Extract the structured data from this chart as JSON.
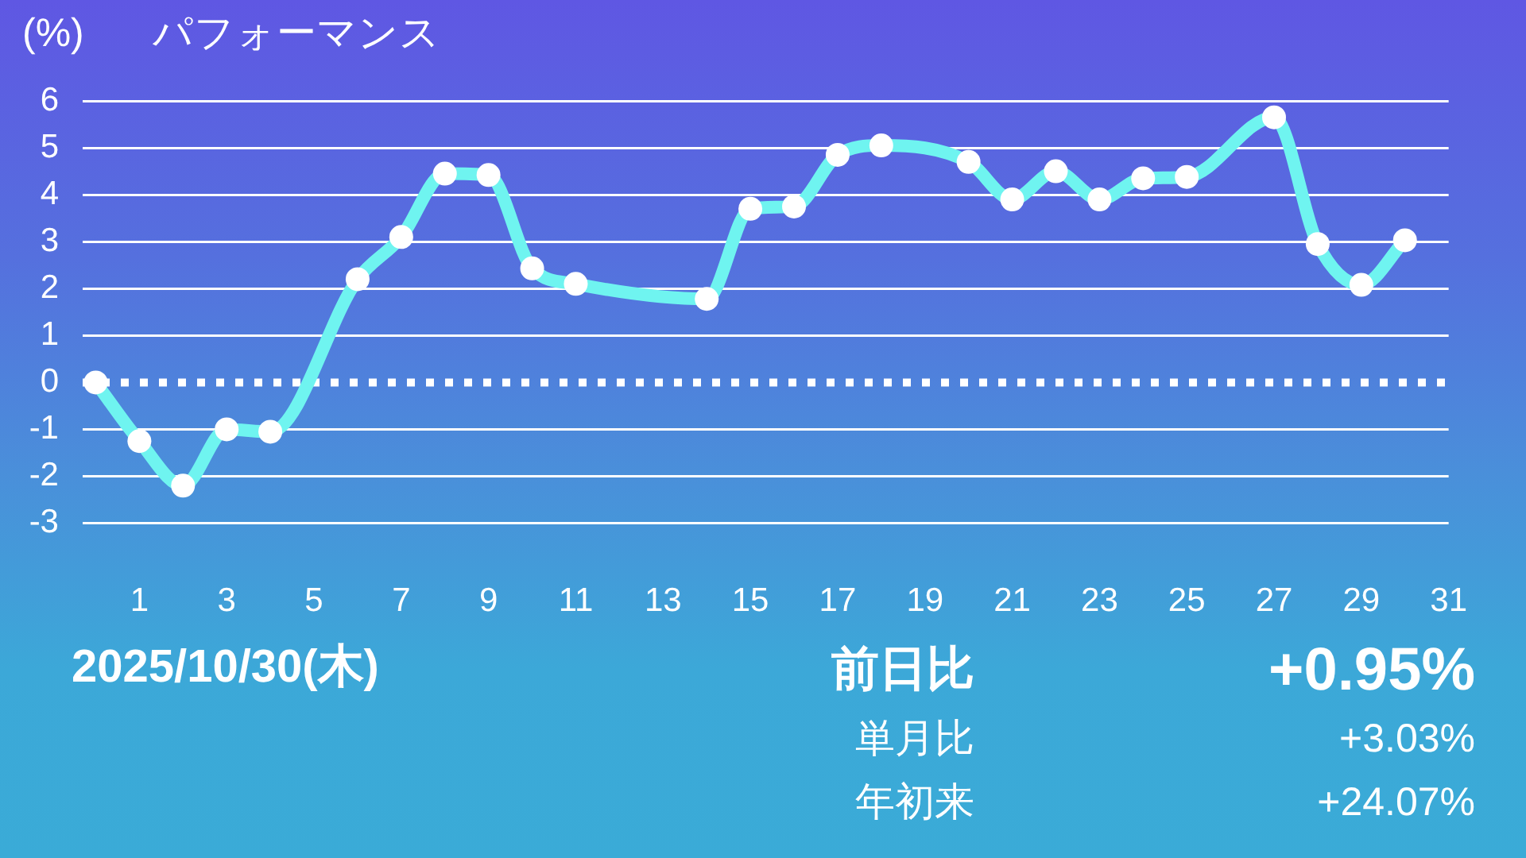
{
  "chart_data": {
    "type": "line",
    "title": "パフォーマンス",
    "ylabel": "(%)",
    "x": [
      0,
      1,
      2,
      3,
      4,
      6,
      7,
      8,
      9,
      10,
      11,
      14,
      15,
      16,
      17,
      18,
      20,
      21,
      22,
      23,
      24,
      25,
      27,
      28,
      29,
      30
    ],
    "series": [
      {
        "color": "#6ff4f0",
        "values": [
          0,
          -1.25,
          -2.2,
          -1.0,
          -1.05,
          2.2,
          3.1,
          4.45,
          4.42,
          2.43,
          2.1,
          1.78,
          3.7,
          3.75,
          4.85,
          5.05,
          4.7,
          3.9,
          4.5,
          3.9,
          4.35,
          4.38,
          5.65,
          2.95,
          2.08,
          3.03
        ]
      }
    ],
    "xlim": [
      -0.3,
      31
    ],
    "xticks": [
      1,
      3,
      5,
      7,
      9,
      11,
      13,
      15,
      17,
      19,
      21,
      23,
      25,
      27,
      29,
      31
    ],
    "ylim": [
      -3,
      6
    ],
    "yticks": [
      -3,
      -2,
      -1,
      0,
      1,
      2,
      3,
      4,
      5,
      6
    ],
    "grid": "y",
    "marker": "circle",
    "line_style": "solid",
    "ref_lines": [
      {
        "axis": "y",
        "value": 0,
        "color": "#ffffff",
        "line_style": "dotted"
      }
    ],
    "annotations": [
      "2025/10/30(木)",
      "前日比",
      "+0.95%",
      "単月比",
      "+3.03%",
      "年初来",
      "+24.07%"
    ]
  }
}
